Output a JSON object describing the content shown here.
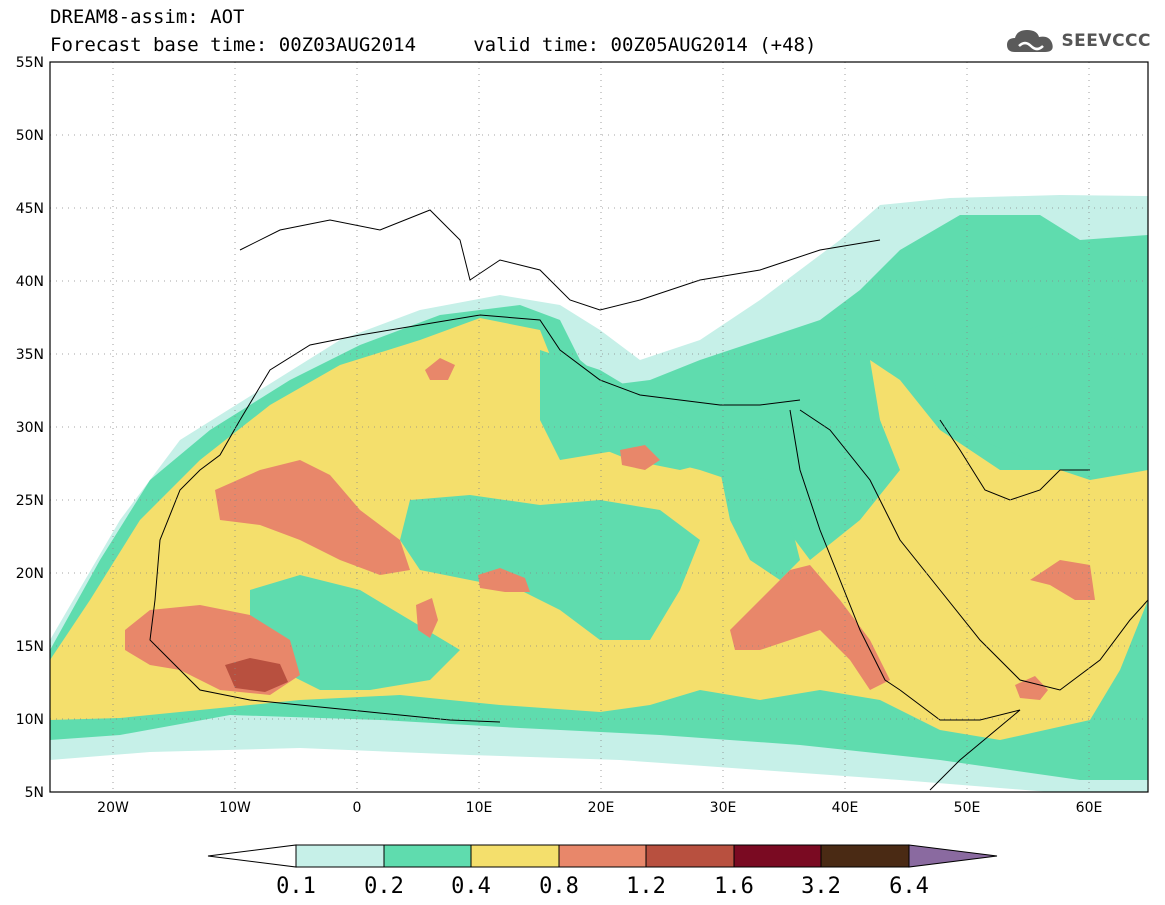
{
  "header": {
    "title_line1": "DREAM8-assim: AOT",
    "title_line2": "Forecast base time: 00Z03AUG2014     valid time: 00Z05AUG2014 (+48)",
    "logo_text": "SEEVCCC"
  },
  "map": {
    "projection": "lat-lon",
    "lon_range": [
      -25,
      65
    ],
    "lat_range": [
      5,
      55
    ],
    "grid": "dotted",
    "lat_ticks": [
      "55N",
      "50N",
      "45N",
      "40N",
      "35N",
      "30N",
      "25N",
      "20N",
      "15N",
      "10N",
      "5N"
    ],
    "lon_ticks": [
      "20W",
      "10W",
      "0",
      "10E",
      "20E",
      "30E",
      "40E",
      "50E",
      "60E"
    ],
    "colors": {
      "c01": "#c6f0e8",
      "c02": "#5fdcae",
      "c04": "#f4df6c",
      "c08": "#e8876a",
      "c12": "#b8503f",
      "c16": "#7a0a22",
      "c32": "#4a2a14",
      "c64": "#8a6aa0",
      "coast": "#000000"
    }
  },
  "colorbar": {
    "labels": [
      "0.1",
      "0.2",
      "0.4",
      "0.8",
      "1.2",
      "1.6",
      "3.2",
      "6.4"
    ],
    "colors": [
      "#ffffff",
      "#c6f0e8",
      "#5fdcae",
      "#f4df6c",
      "#e8876a",
      "#b8503f",
      "#7a0a22",
      "#4a2a14",
      "#8a6aa0"
    ]
  }
}
